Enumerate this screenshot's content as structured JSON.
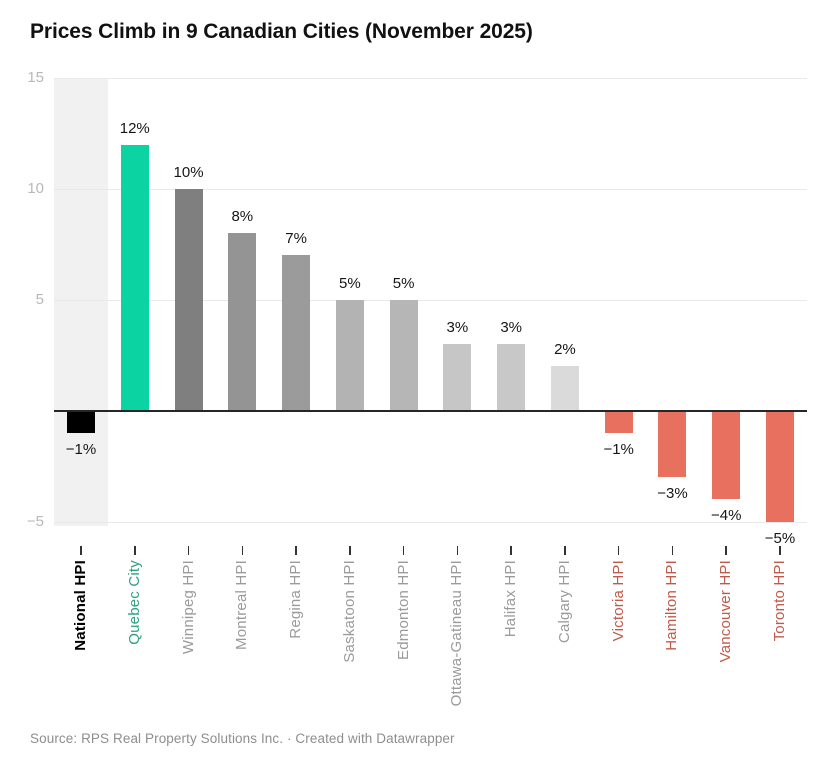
{
  "header": {
    "title": "Prices Climb in 9 Canadian Cities (November 2025)"
  },
  "chart_data": {
    "type": "bar",
    "title": "Prices Climb in 9 Canadian Cities (November 2025)",
    "xlabel": "",
    "ylabel": "",
    "ylim": [
      -5,
      15
    ],
    "grid": true,
    "legend": "none",
    "highlight_column": "National HPI",
    "categories": [
      "National HPI",
      "Quebec City",
      "Winnipeg HPI",
      "Montreal HPI",
      "Regina HPI",
      "Saskatoon HPI",
      "Edmonton HPI",
      "Ottawa-Gatineau HPI",
      "Halifax HPI",
      "Calgary HPI",
      "Victoria HPI",
      "Hamilton HPI",
      "Vancouver HPI",
      "Toronto HPI"
    ],
    "values": [
      -1,
      12,
      10,
      8,
      7,
      5,
      5,
      3,
      3,
      2,
      -1,
      -3,
      -4,
      -5
    ],
    "yticks": [
      {
        "value": 15,
        "label": "15"
      },
      {
        "value": 10,
        "label": "10"
      },
      {
        "value": 5,
        "label": "5"
      },
      {
        "value": -5,
        "label": "−5"
      }
    ],
    "bars": [
      {
        "category": "National HPI",
        "value": -1,
        "display": "−1%",
        "color": "#000000",
        "label_color": "#000000",
        "bold": true,
        "highlighted": true
      },
      {
        "category": "Quebec City",
        "value": 12,
        "display": "12%",
        "color": "#0bd3a1",
        "label_color": "#2da184",
        "bold": false,
        "highlighted": false
      },
      {
        "category": "Winnipeg HPI",
        "value": 10,
        "display": "10%",
        "color": "#7f7f7f",
        "label_color": "#9b9b9b",
        "bold": false,
        "highlighted": false
      },
      {
        "category": "Montreal HPI",
        "value": 8,
        "display": "8%",
        "color": "#949494",
        "label_color": "#9b9b9b",
        "bold": false,
        "highlighted": false
      },
      {
        "category": "Regina HPI",
        "value": 7,
        "display": "7%",
        "color": "#9b9b9b",
        "label_color": "#9b9b9b",
        "bold": false,
        "highlighted": false
      },
      {
        "category": "Saskatoon HPI",
        "value": 5,
        "display": "5%",
        "color": "#b3b3b3",
        "label_color": "#9b9b9b",
        "bold": false,
        "highlighted": false
      },
      {
        "category": "Edmonton HPI",
        "value": 5,
        "display": "5%",
        "color": "#b6b6b6",
        "label_color": "#9b9b9b",
        "bold": false,
        "highlighted": false
      },
      {
        "category": "Ottawa-Gatineau HPI",
        "value": 3,
        "display": "3%",
        "color": "#c6c6c6",
        "label_color": "#9b9b9b",
        "bold": false,
        "highlighted": false
      },
      {
        "category": "Halifax HPI",
        "value": 3,
        "display": "3%",
        "color": "#c8c8c8",
        "label_color": "#9b9b9b",
        "bold": false,
        "highlighted": false
      },
      {
        "category": "Calgary HPI",
        "value": 2,
        "display": "2%",
        "color": "#dadada",
        "label_color": "#9b9b9b",
        "bold": false,
        "highlighted": false
      },
      {
        "category": "Victoria HPI",
        "value": -1,
        "display": "−1%",
        "color": "#e8705f",
        "label_color": "#bf5a4b",
        "bold": false,
        "highlighted": false
      },
      {
        "category": "Hamilton HPI",
        "value": -3,
        "display": "−3%",
        "color": "#e8705f",
        "label_color": "#bf5a4b",
        "bold": false,
        "highlighted": false
      },
      {
        "category": "Vancouver HPI",
        "value": -4,
        "display": "−4%",
        "color": "#e8705f",
        "label_color": "#bf5a4b",
        "bold": false,
        "highlighted": false
      },
      {
        "category": "Toronto HPI",
        "value": -5,
        "display": "−5%",
        "color": "#e8705f",
        "label_color": "#bf5a4b",
        "bold": false,
        "highlighted": false
      }
    ],
    "colors": {
      "accent_green": "#0bd3a1",
      "negative_red": "#e8705f",
      "national_black": "#000000",
      "highlight_band": "#f1f1f1",
      "grid_line": "#e9e9e9",
      "zero_axis": "#262626",
      "y_tick_text": "#b8b8b8",
      "value_label_text": "#161616",
      "x_tick_mark": "#333333"
    }
  },
  "footer": {
    "source": "Source: RPS Real Property Solutions Inc. · Created with Datawrapper"
  }
}
